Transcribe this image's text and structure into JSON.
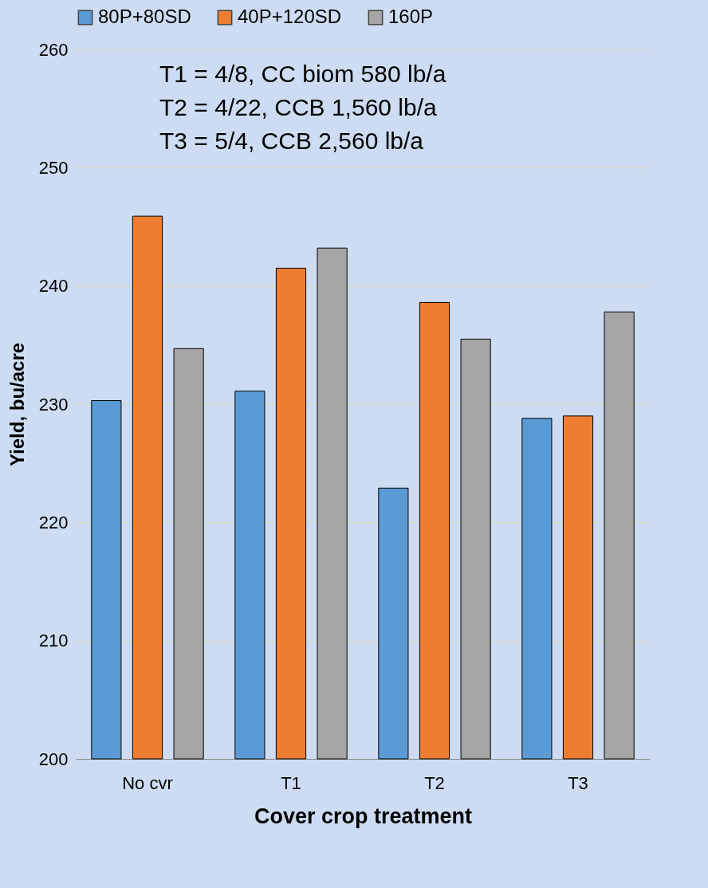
{
  "chart_data": {
    "type": "bar",
    "xlabel": "Cover crop treatment",
    "ylabel": "Yield, bu/acre",
    "categories": [
      "No cvr",
      "T1",
      "T2",
      "T3"
    ],
    "series": [
      {
        "name": "80P+80SD",
        "color": "#5b9bd5",
        "values": [
          230.3,
          231.1,
          222.9,
          228.8
        ]
      },
      {
        "name": "40P+120SD",
        "color": "#ed7d31",
        "values": [
          245.9,
          241.5,
          238.6,
          229.0
        ]
      },
      {
        "name": "160P",
        "color": "#a5a5a5",
        "values": [
          234.7,
          243.2,
          235.5,
          237.8
        ]
      }
    ],
    "ylim": [
      200,
      260
    ],
    "yticks": [
      200,
      210,
      220,
      230,
      240,
      250,
      260
    ],
    "grid": "y",
    "legend": "top",
    "annotations": [
      "T1 = 4/8, CC biom  580 lb/a",
      "T2 = 4/22, CCB  1,560 lb/a",
      "T3 = 5/4,   CCB  2,560 lb/a"
    ]
  }
}
